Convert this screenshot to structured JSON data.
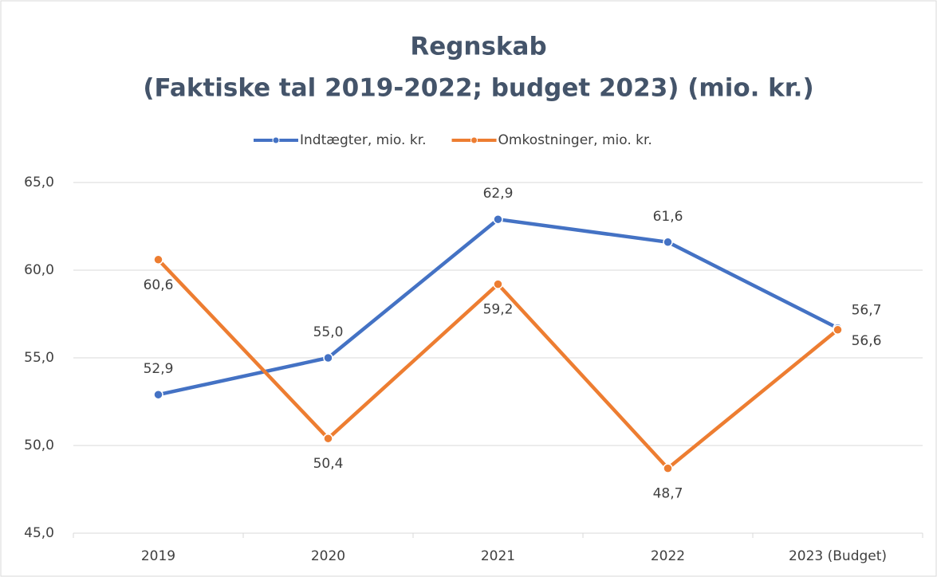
{
  "chart_data": {
    "type": "line",
    "title": "Regnskab",
    "subtitle": "(Faktiske tal 2019-2022; budget 2023) (mio. kr.)",
    "categories": [
      "2019",
      "2020",
      "2021",
      "2022",
      "2023 (Budget)"
    ],
    "series": [
      {
        "name": "Indtægter, mio. kr.",
        "color": "#4472c4",
        "values": [
          52.9,
          55.0,
          62.9,
          61.6,
          56.7
        ],
        "value_labels": [
          "52,9",
          "55,0",
          "62,9",
          "61,6",
          "56,7"
        ]
      },
      {
        "name": "Omkostninger, mio. kr.",
        "color": "#ed7d31",
        "values": [
          60.6,
          50.4,
          59.2,
          48.7,
          56.6
        ],
        "value_labels": [
          "60,6",
          "50,4",
          "59,2",
          "48,7",
          "56,6"
        ]
      }
    ],
    "ylim": [
      45,
      65
    ],
    "yticks": [
      {
        "value": 45,
        "label": "45,0"
      },
      {
        "value": 50,
        "label": "50,0"
      },
      {
        "value": 55,
        "label": "55,0"
      },
      {
        "value": 60,
        "label": "60,0"
      },
      {
        "value": 65,
        "label": "65,0"
      }
    ],
    "grid": true,
    "legend": "top"
  }
}
